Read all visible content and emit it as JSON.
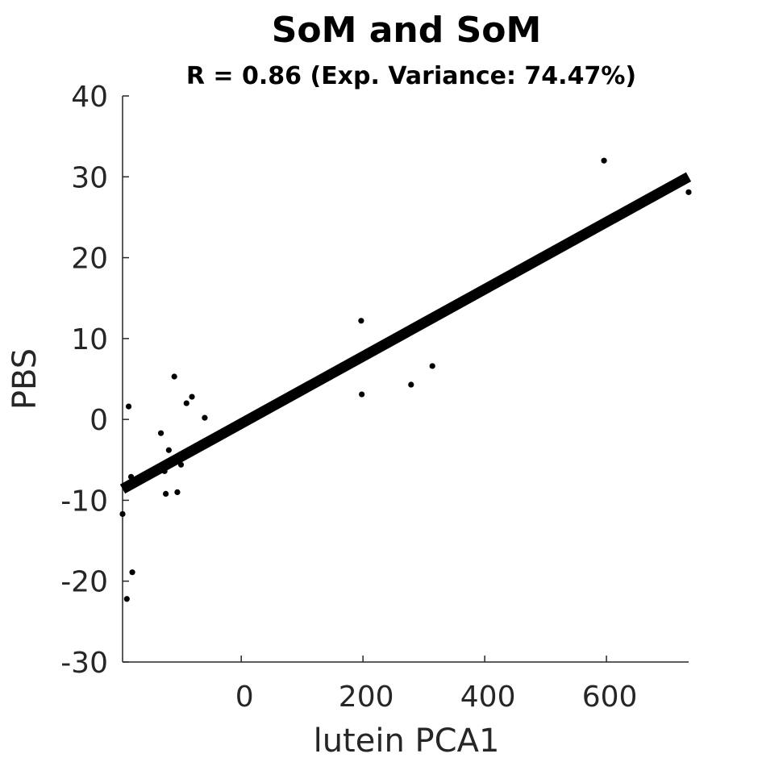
{
  "chart_data": {
    "type": "scatter",
    "title": "SoM and SoM",
    "subtitle": "R = 0.86 (Exp. Variance: 74.47%)",
    "xlabel": "lutein PCA1",
    "ylabel": "PBS",
    "xlim": [
      -195,
      735
    ],
    "ylim": [
      -30,
      40
    ],
    "xticks": [
      0,
      200,
      400,
      600
    ],
    "yticks": [
      -30,
      -20,
      -10,
      0,
      10,
      20,
      30,
      40
    ],
    "xtick_labels": [
      "0",
      "200",
      "400",
      "600"
    ],
    "ytick_labels": [
      "-30",
      "-20",
      "-10",
      "0",
      "10",
      "20",
      "30",
      "40"
    ],
    "grid": false,
    "points": [
      {
        "x": -195,
        "y": -11.7
      },
      {
        "x": -188,
        "y": -22.2
      },
      {
        "x": -185,
        "y": 1.6
      },
      {
        "x": -181,
        "y": -7.1
      },
      {
        "x": -179,
        "y": -18.9
      },
      {
        "x": -132,
        "y": -1.7
      },
      {
        "x": -126,
        "y": -6.4
      },
      {
        "x": -124,
        "y": -9.2
      },
      {
        "x": -119,
        "y": -3.8
      },
      {
        "x": -110,
        "y": 5.3
      },
      {
        "x": -105,
        "y": -9.0
      },
      {
        "x": -99,
        "y": -5.6
      },
      {
        "x": -90,
        "y": 2.0
      },
      {
        "x": -81,
        "y": 2.8
      },
      {
        "x": -60,
        "y": 0.2
      },
      {
        "x": 197,
        "y": 12.2
      },
      {
        "x": 198,
        "y": 3.1
      },
      {
        "x": 279,
        "y": 4.3
      },
      {
        "x": 314,
        "y": 6.6
      },
      {
        "x": 596,
        "y": 32.0
      },
      {
        "x": 735,
        "y": 28.1
      }
    ],
    "fit_line": {
      "x": [
        -195,
        735
      ],
      "y": [
        -8.6,
        30.0
      ]
    }
  }
}
